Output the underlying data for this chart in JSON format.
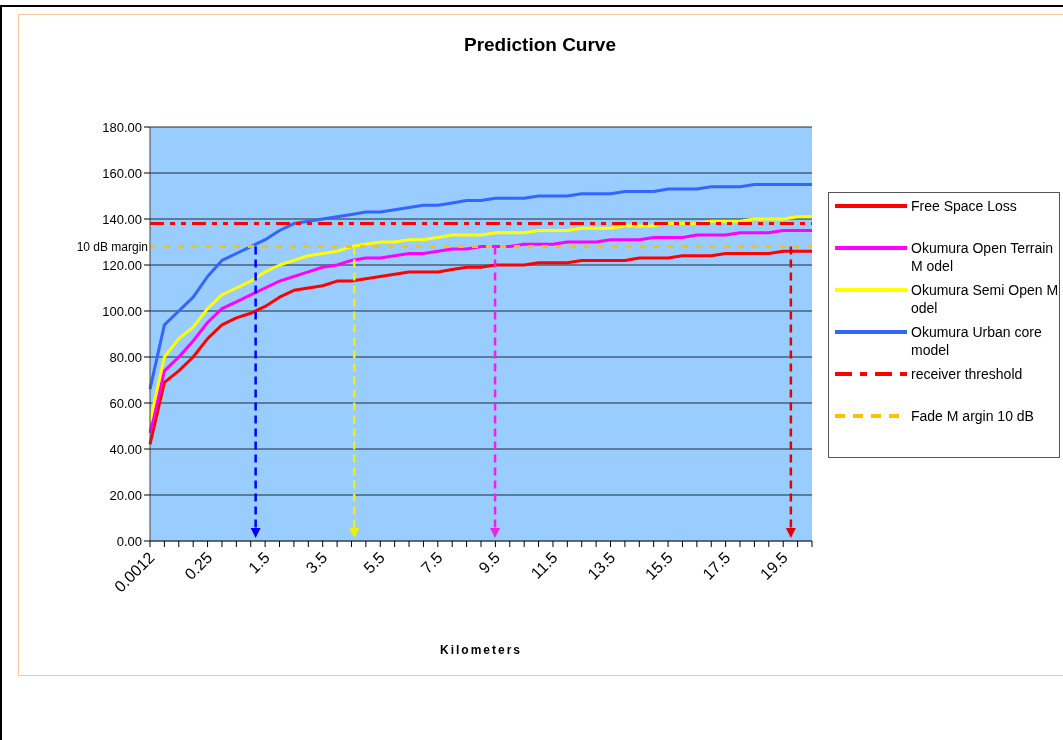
{
  "chart_data": {
    "type": "line",
    "title": "Prediction Curve",
    "xlabel": "Kilometers",
    "categories": [
      "0.0012",
      null,
      null,
      null,
      "0.25",
      null,
      null,
      null,
      "1.5",
      null,
      null,
      null,
      "3.5",
      null,
      null,
      null,
      "5.5",
      null,
      null,
      null,
      "7.5",
      null,
      null,
      null,
      "9.5",
      null,
      null,
      null,
      "11.5",
      null,
      null,
      null,
      "13.5",
      null,
      null,
      null,
      "15.5",
      null,
      null,
      null,
      "17.5",
      null,
      null,
      null,
      "19.5",
      null,
      null
    ],
    "series": [
      {
        "name": "Free Space Loss",
        "color": "#ff0000",
        "values": [
          42,
          69,
          74,
          80,
          88,
          94,
          97,
          99,
          102,
          106,
          109,
          110,
          111,
          113,
          113,
          114,
          115,
          116,
          117,
          117,
          117,
          118,
          119,
          119,
          120,
          120,
          120,
          121,
          121,
          121,
          122,
          122,
          122,
          122,
          123,
          123,
          123,
          124,
          124,
          124,
          125,
          125,
          125,
          125,
          126,
          126,
          126
        ]
      },
      {
        "name": "Okumura Open Terrain M odel",
        "color": "#ff00ff",
        "values": [
          47,
          74,
          80,
          87,
          95,
          101,
          104,
          107,
          110,
          113,
          115,
          117,
          119,
          120,
          122,
          123,
          123,
          124,
          125,
          125,
          126,
          127,
          127,
          128,
          128,
          128,
          129,
          129,
          129,
          130,
          130,
          130,
          131,
          131,
          131,
          132,
          132,
          132,
          133,
          133,
          133,
          134,
          134,
          134,
          135,
          135,
          135
        ]
      },
      {
        "name": "Okumura Semi Open M odel",
        "color": "#ffff00",
        "values": [
          52,
          80,
          88,
          93,
          101,
          107,
          110,
          113,
          117,
          120,
          122,
          124,
          125,
          126,
          128,
          129,
          130,
          130,
          131,
          131,
          132,
          133,
          133,
          133,
          134,
          134,
          134,
          135,
          135,
          135,
          136,
          136,
          136,
          137,
          137,
          137,
          138,
          138,
          138,
          139,
          139,
          139,
          140,
          140,
          140,
          141,
          141
        ]
      },
      {
        "name": "Okumura Urban core model",
        "color": "#3366ff",
        "values": [
          66,
          94,
          100,
          106,
          115,
          122,
          125,
          128,
          131,
          135,
          138,
          139,
          140,
          141,
          142,
          143,
          143,
          144,
          145,
          146,
          146,
          147,
          148,
          148,
          149,
          149,
          149,
          150,
          150,
          150,
          151,
          151,
          151,
          152,
          152,
          152,
          153,
          153,
          153,
          154,
          154,
          154,
          155,
          155,
          155,
          155,
          155
        ]
      },
      {
        "name": "receiver threshold",
        "color": "#ff0000",
        "line_style": "dashed",
        "values": [
          138,
          138,
          138,
          138,
          138,
          138,
          138,
          138,
          138,
          138,
          138,
          138,
          138,
          138,
          138,
          138,
          138,
          138,
          138,
          138,
          138,
          138,
          138,
          138,
          138,
          138,
          138,
          138,
          138,
          138,
          138,
          138,
          138,
          138,
          138,
          138,
          138,
          138,
          138,
          138,
          138,
          138,
          138,
          138,
          138,
          138,
          138
        ]
      },
      {
        "name": "Fade M argin 10 dB",
        "color": "#ffc000",
        "line_style": "dotted",
        "values": [
          128,
          128,
          128,
          128,
          128,
          128,
          128,
          128,
          128,
          128,
          128,
          128,
          128,
          128,
          128,
          128,
          128,
          128,
          128,
          128,
          128,
          128,
          128,
          128,
          128,
          128,
          128,
          128,
          128,
          128,
          128,
          128,
          128,
          128,
          128,
          128,
          128,
          128,
          128,
          128,
          128,
          128,
          128,
          128,
          128,
          128,
          128
        ]
      }
    ],
    "annotations": [
      "10 dB margin"
    ],
    "ylim": [
      0,
      180
    ],
    "yticks": [
      {
        "value": 0,
        "label": "0.00"
      },
      {
        "value": 20,
        "label": "20.00"
      },
      {
        "value": 40,
        "label": "40.00"
      },
      {
        "value": 60,
        "label": "60.00"
      },
      {
        "value": 80,
        "label": "80.00"
      },
      {
        "value": 100,
        "label": "100.00"
      },
      {
        "value": 120,
        "label": "120.00"
      },
      {
        "value": 140,
        "label": "140.00"
      },
      {
        "value": 160,
        "label": "160.00"
      },
      {
        "value": 180,
        "label": "180.00"
      }
    ],
    "grid": "y",
    "legend": "right",
    "marker": "none"
  }
}
